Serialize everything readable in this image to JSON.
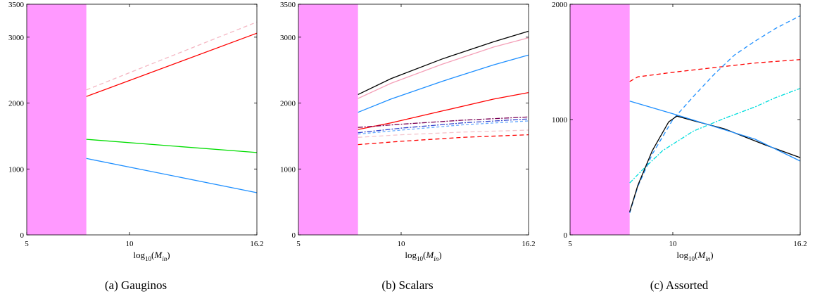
{
  "chart_data": [
    {
      "type": "line",
      "caption": "(a) Gauginos",
      "xlabel": "log10(Min)",
      "xlim": [
        5,
        16.2
      ],
      "ylim": [
        0,
        3500
      ],
      "xticks": [
        "5",
        "10",
        "16.2"
      ],
      "yticks": [
        "0",
        "1000",
        "2000",
        "3000",
        "3500"
      ],
      "excluded_region": {
        "x": [
          5,
          7.9
        ],
        "color": "#ff99ff"
      },
      "series": [
        {
          "color": "#f4b6c2",
          "dash": "6,4",
          "points": [
            [
              7.9,
              2200
            ],
            [
              16.2,
              3230
            ]
          ]
        },
        {
          "color": "#ff0000",
          "dash": "",
          "points": [
            [
              7.9,
              2100
            ],
            [
              16.2,
              3060
            ]
          ]
        },
        {
          "color": "#00dd00",
          "dash": "",
          "points": [
            [
              7.9,
              1450
            ],
            [
              16.2,
              1250
            ]
          ]
        },
        {
          "color": "#1e8fff",
          "dash": "",
          "points": [
            [
              7.9,
              1160
            ],
            [
              16.2,
              640
            ]
          ]
        }
      ]
    },
    {
      "type": "line",
      "caption": "(b) Scalars",
      "xlabel": "log10(Min)",
      "xlim": [
        5,
        16.2
      ],
      "ylim": [
        0,
        3500
      ],
      "xticks": [
        "5",
        "10",
        "16.2"
      ],
      "yticks": [
        "0",
        "1000",
        "2000",
        "3000",
        "3500"
      ],
      "excluded_region": {
        "x": [
          5,
          7.9
        ],
        "color": "#ff99ff"
      },
      "series": [
        {
          "color": "#000000",
          "dash": "",
          "points": [
            [
              7.9,
              2130
            ],
            [
              9.5,
              2370
            ],
            [
              12,
              2670
            ],
            [
              14.5,
              2930
            ],
            [
              16.2,
              3090
            ]
          ]
        },
        {
          "color": "#f4a0b8",
          "dash": "",
          "points": [
            [
              7.9,
              2070
            ],
            [
              9.5,
              2300
            ],
            [
              12,
              2590
            ],
            [
              14.5,
              2850
            ],
            [
              16.2,
              2990
            ]
          ]
        },
        {
          "color": "#1e8fff",
          "dash": "",
          "points": [
            [
              7.9,
              1860
            ],
            [
              9.5,
              2060
            ],
            [
              12,
              2330
            ],
            [
              14.5,
              2580
            ],
            [
              16.2,
              2730
            ]
          ]
        },
        {
          "color": "#ff0000",
          "dash": "",
          "points": [
            [
              7.9,
              1600
            ],
            [
              9.5,
              1700
            ],
            [
              12,
              1880
            ],
            [
              14.5,
              2060
            ],
            [
              16.2,
              2160
            ]
          ]
        },
        {
          "color": "#7a0055",
          "dash": "7,2,2,2",
          "points": [
            [
              7.9,
              1630
            ],
            [
              10,
              1680
            ],
            [
              13,
              1740
            ],
            [
              16.2,
              1790
            ]
          ]
        },
        {
          "color": "#3344cc",
          "dash": "7,2,2,2",
          "points": [
            [
              7.9,
              1550
            ],
            [
              10,
              1620
            ],
            [
              13,
              1700
            ],
            [
              16.2,
              1760
            ]
          ]
        },
        {
          "color": "#66aaff",
          "dash": "4,3",
          "points": [
            [
              7.9,
              1530
            ],
            [
              10,
              1590
            ],
            [
              13,
              1670
            ],
            [
              16.2,
              1730
            ]
          ]
        },
        {
          "color": "#f4c4cc",
          "dash": "6,4",
          "points": [
            [
              7.9,
              1480
            ],
            [
              10,
              1520
            ],
            [
              13,
              1560
            ],
            [
              16.2,
              1590
            ]
          ]
        },
        {
          "color": "#ff0000",
          "dash": "6,4",
          "points": [
            [
              7.9,
              1370
            ],
            [
              10,
              1420
            ],
            [
              13,
              1480
            ],
            [
              16.2,
              1520
            ]
          ]
        }
      ]
    },
    {
      "type": "line",
      "caption": "(c) Assorted",
      "xlabel": "log10(Min)",
      "xlim": [
        5,
        16.2
      ],
      "ylim": [
        0,
        2000
      ],
      "xticks": [
        "5",
        "10",
        "16.2"
      ],
      "yticks": [
        "0",
        "1000",
        "2000"
      ],
      "excluded_region": {
        "x": [
          5,
          7.9
        ],
        "color": "#ff99ff"
      },
      "series": [
        {
          "color": "#ff0000",
          "dash": "6,4",
          "points": [
            [
              7.9,
              1330
            ],
            [
              8.3,
              1370
            ],
            [
              10,
              1410
            ],
            [
              12,
              1450
            ],
            [
              14,
              1490
            ],
            [
              16.2,
              1520
            ]
          ]
        },
        {
          "color": "#1e8fff",
          "dash": "6,4",
          "points": [
            [
              7.9,
              190
            ],
            [
              8.3,
              420
            ],
            [
              9,
              700
            ],
            [
              10,
              1000
            ],
            [
              11,
              1200
            ],
            [
              12,
              1390
            ],
            [
              13,
              1560
            ],
            [
              14,
              1680
            ],
            [
              15,
              1790
            ],
            [
              16.2,
              1900
            ]
          ]
        },
        {
          "color": "#00dddd",
          "dash": "6,2,2,2",
          "points": [
            [
              7.9,
              450
            ],
            [
              8.5,
              560
            ],
            [
              9.5,
              730
            ],
            [
              11,
              900
            ],
            [
              12.5,
              1010
            ],
            [
              14,
              1110
            ],
            [
              15,
              1190
            ],
            [
              16.2,
              1270
            ]
          ]
        },
        {
          "color": "#000000",
          "dash": "",
          "points": [
            [
              7.9,
              200
            ],
            [
              8.3,
              430
            ],
            [
              9,
              730
            ],
            [
              9.8,
              980
            ],
            [
              10.2,
              1030
            ],
            [
              11,
              990
            ],
            [
              12.5,
              920
            ],
            [
              14.5,
              780
            ],
            [
              16.2,
              670
            ]
          ]
        },
        {
          "color": "#1e8fff",
          "dash": "",
          "points": [
            [
              7.9,
              1160
            ],
            [
              10,
              1050
            ],
            [
              12,
              940
            ],
            [
              14,
              830
            ],
            [
              16.2,
              640
            ]
          ]
        }
      ]
    }
  ]
}
